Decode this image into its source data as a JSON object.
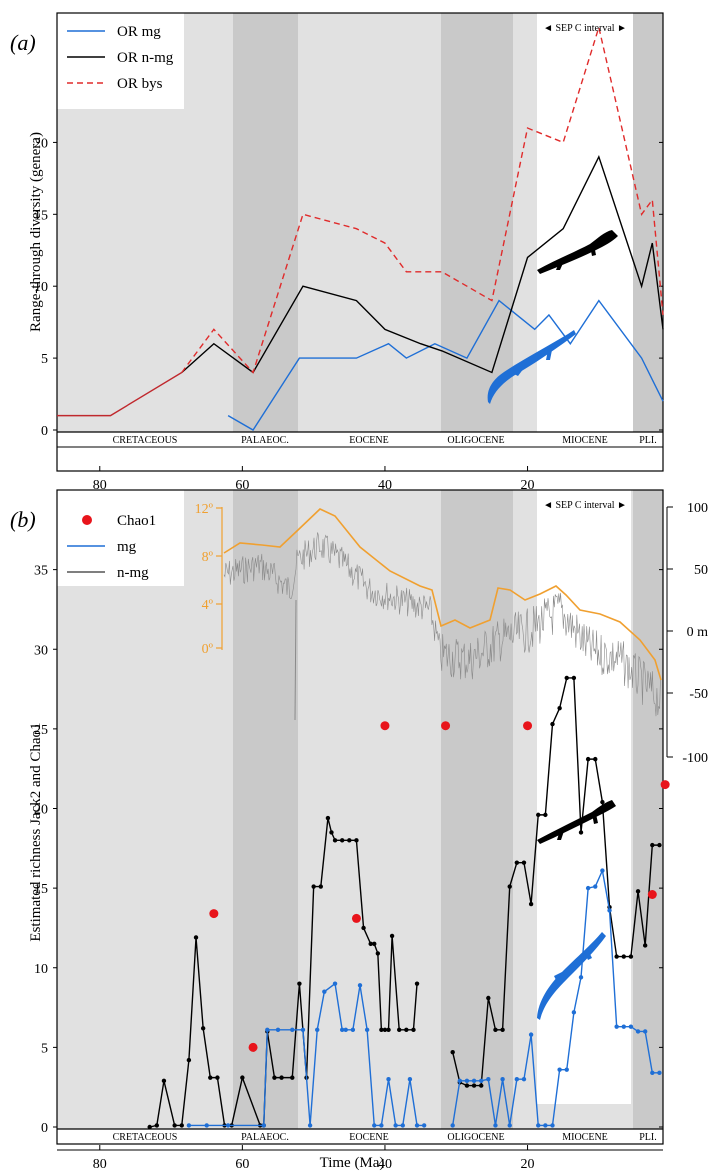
{
  "chart_data": [
    {
      "panel_label": "(a)",
      "type": "line",
      "ylabel": "Range-through diversity (genera)",
      "xlim": [
        86,
        1
      ],
      "ylim": [
        0,
        29
      ],
      "y_ticks": [
        0,
        5,
        10,
        15,
        20
      ],
      "x_ticks": [
        80,
        60,
        40,
        20
      ],
      "sep_label": "◄ SEP C interval ►",
      "epochs": [
        "CRETACEOUS",
        "PALAEOC.",
        "EOCENE",
        "OLIGOCENE",
        "MIOCENE",
        "PLI."
      ],
      "legend": [
        "OR mg",
        "OR n-mg",
        "OR bys"
      ],
      "series": [
        {
          "name": "OR mg",
          "color": "#1f6fd6",
          "dash": false,
          "x": [
            62,
            58.5,
            52,
            44,
            39.5,
            37,
            33,
            28.5,
            24,
            19,
            17,
            14,
            10,
            4,
            1
          ],
          "y": [
            1,
            0,
            5,
            5,
            6,
            5,
            6,
            5,
            9,
            7,
            8,
            6,
            9,
            5,
            2
          ]
        },
        {
          "name": "OR n-mg",
          "color": "#000000",
          "dash": false,
          "x": [
            68.5,
            64,
            58.5,
            51.5,
            44,
            40,
            35,
            32,
            25,
            20,
            15,
            10,
            4,
            2.5,
            1
          ],
          "y": [
            4,
            6,
            4,
            10,
            9,
            7,
            6,
            5.5,
            4,
            12,
            14,
            19,
            10,
            13,
            7
          ]
        },
        {
          "name": "OR bys",
          "color": "#e02b2b",
          "dash": true,
          "x": [
            68.5,
            64,
            58.5,
            51.5,
            44,
            40,
            37,
            32,
            25,
            20,
            15,
            10,
            4,
            2.5,
            1
          ],
          "y": [
            4,
            7,
            4,
            15,
            14,
            13,
            11,
            11,
            9,
            21,
            20,
            28,
            15,
            16,
            8
          ]
        },
        {
          "name": "",
          "color": "#c0282d",
          "dash": false,
          "x": [
            86,
            78.5,
            68.5
          ],
          "y": [
            1,
            1,
            4
          ]
        }
      ]
    },
    {
      "panel_label": "(b)",
      "type": "line",
      "xlabel": "Time (Ma)",
      "ylabel": "Estimated richness Jack2 and Chao1",
      "xlim": [
        86,
        1
      ],
      "ylim": [
        0,
        40
      ],
      "y_ticks": [
        0,
        5,
        10,
        15,
        20,
        25,
        30,
        35
      ],
      "x_ticks": [
        80,
        60,
        40,
        20
      ],
      "sep_label": "◄ SEP C interval ►",
      "epochs": [
        "CRETACEOUS",
        "PALAEOC.",
        "EOCENE",
        "OLIGOCENE",
        "MIOCENE",
        "PLI."
      ],
      "legend": [
        "Chao1",
        "mg",
        "n-mg"
      ],
      "temp_ticks": [
        "12º",
        "8º",
        "4º",
        "0º"
      ],
      "sea_level_ticks": [
        "100",
        "50",
        "0 m",
        "-50",
        "-100"
      ],
      "chao1": {
        "x": [
          64,
          58.5,
          40,
          31.5,
          20,
          44,
          2.5,
          0.7
        ],
        "y": [
          13.4,
          5,
          25.2,
          25.2,
          25.2,
          13.1,
          14.6,
          21.5
        ]
      },
      "series": [
        {
          "name": "n-mg",
          "color": "#000000",
          "x": [
            73,
            72,
            71,
            69.5,
            68.5,
            67.5,
            66.5,
            65.5,
            64.5,
            63.5,
            62.5,
            61.5,
            60,
            57.5,
            57,
            56.5,
            55.5,
            54.5,
            53,
            52,
            51,
            50,
            49,
            48,
            47.5,
            47,
            46,
            45,
            44,
            43,
            42,
            41.5,
            41,
            40.5,
            40,
            39.5,
            39,
            38,
            37,
            36,
            35.5
          ],
          "y": [
            0,
            0.1,
            2.9,
            0.1,
            0.1,
            4.2,
            11.9,
            6.2,
            3.1,
            3.1,
            0.1,
            0.1,
            3.1,
            0.1,
            0.1,
            6,
            3.1,
            3.1,
            3.1,
            9,
            3.1,
            15.1,
            15.1,
            19.4,
            18.5,
            18,
            18,
            18,
            18,
            12.5,
            11.5,
            11.5,
            10.9,
            6.1,
            6.1,
            6.1,
            12,
            6.1,
            6.1,
            6.1,
            9
          ]
        },
        {
          "name": "n-mg",
          "color": "#000000",
          "x": [
            30.5,
            29.5,
            28.5,
            27.5,
            26.5,
            25.5,
            24.5,
            23.5,
            22.5,
            21.5,
            20.5,
            19.5,
            18.5,
            17.5,
            16.5,
            15.5,
            14.5,
            13.5,
            12.5,
            11.5,
            10.5,
            9.5,
            8.5,
            7.5,
            6.5,
            5.5,
            4.5,
            3.5,
            2.5,
            1.5
          ],
          "y": [
            4.7,
            2.8,
            2.6,
            2.6,
            2.6,
            8.1,
            6.1,
            6.1,
            15.1,
            16.6,
            16.6,
            14,
            19.6,
            19.6,
            25.3,
            26.3,
            28.2,
            28.2,
            18.5,
            23.1,
            23.1,
            20.4,
            13.8,
            10.7,
            10.7,
            10.7,
            14.8,
            11.4,
            17.7,
            17.7
          ]
        },
        {
          "name": "mg",
          "color": "#1f6fd6",
          "x": [
            67.5,
            65,
            62,
            57,
            56.5,
            55,
            53,
            51.5,
            50.5,
            49.5,
            48.5,
            47,
            46,
            45.5,
            44.5,
            43.5,
            42.5,
            41.5,
            40.5,
            39.5,
            38.5,
            37.5,
            36.5,
            35.5,
            34.5
          ],
          "y": [
            0.1,
            0.1,
            0.1,
            0.1,
            6.1,
            6.1,
            6.1,
            6.1,
            0.1,
            6.1,
            8.5,
            9,
            6.1,
            6.1,
            6.1,
            8.9,
            6.1,
            0.1,
            0.1,
            3,
            0.1,
            0.1,
            3,
            0.1,
            0.1
          ]
        },
        {
          "name": "mg",
          "color": "#1f6fd6",
          "x": [
            30.5,
            29.5,
            28.5,
            27.5,
            26.5,
            25.5,
            24.5,
            23.5,
            22.5,
            21.5,
            20.5,
            19.5,
            18.5,
            17.5,
            16.5,
            15.5,
            14.5,
            13.5,
            12.5,
            11.5,
            10.5,
            9.5,
            8.5,
            7.5,
            6.5,
            5.5,
            4.5,
            3.5,
            2.5,
            1.5
          ],
          "y": [
            0.1,
            2.9,
            2.9,
            2.9,
            2.9,
            3,
            0.1,
            3,
            0.1,
            3,
            3,
            5.8,
            0.1,
            0.1,
            0.1,
            3.6,
            3.6,
            7.2,
            9.4,
            15,
            15.1,
            16.1,
            13.6,
            6.3,
            6.3,
            6.3,
            6,
            6,
            3.4,
            3.4
          ]
        }
      ]
    }
  ]
}
